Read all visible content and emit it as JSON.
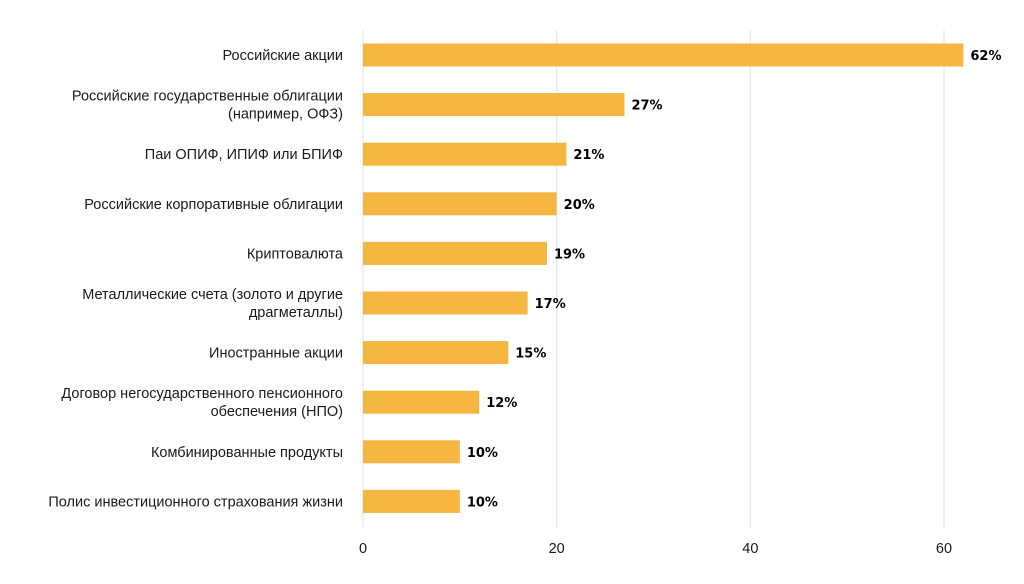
{
  "chart_data": {
    "type": "bar",
    "orientation": "horizontal",
    "categories": [
      [
        "Российские акции"
      ],
      [
        "Российские государственные облигации",
        "(например, ОФЗ)"
      ],
      [
        "Паи ОПИФ, ИПИФ или БПИФ"
      ],
      [
        "Российские корпоративные облигации"
      ],
      [
        "Криптовалюта"
      ],
      [
        "Металлические счета (золото и другие",
        "драгметаллы)"
      ],
      [
        "Иностранные акции"
      ],
      [
        "Договор негосударственного пенсионного",
        "обеспечения (НПО)"
      ],
      [
        "Комбинированные продукты"
      ],
      [
        "Полис инвестиционного страхования жизни"
      ]
    ],
    "values": [
      62,
      27,
      21,
      20,
      19,
      17,
      15,
      12,
      10,
      10
    ],
    "value_labels": [
      "62%",
      "27%",
      "21%",
      "20%",
      "19%",
      "17%",
      "15%",
      "12%",
      "10%",
      "10%"
    ],
    "xlim": [
      0,
      60
    ],
    "xticks": [
      0,
      20,
      40,
      60
    ],
    "xtick_labels": [
      "0",
      "20",
      "40",
      "60"
    ],
    "grid": "vertical",
    "legend": "none",
    "bar_color": "#F5B642",
    "title": "",
    "xlabel": "",
    "ylabel": ""
  }
}
